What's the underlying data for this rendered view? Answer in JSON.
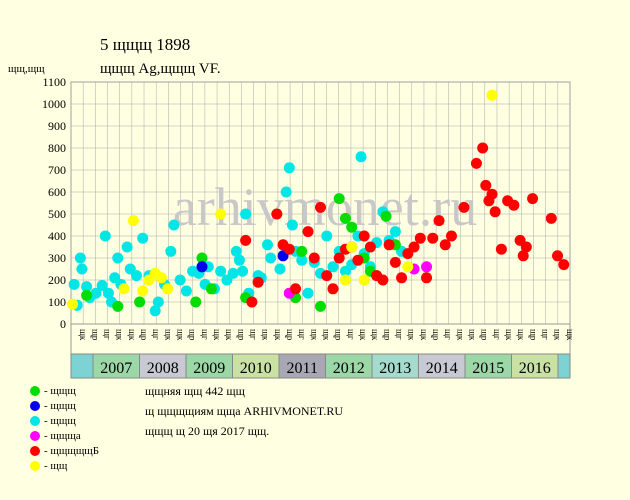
{
  "header": {
    "title": "5  щщщ 1898",
    "subtitle": "щщщ Ag,щщщ VF.",
    "yunit": "щщ,щщ"
  },
  "watermark": "arhivmonet.ru",
  "notes": [
    "щщняя щщ 442 щщ",
    "щ щщщщиям щща ARHIVMONET.RU",
    "щщщ щ 20 щя 2017 щщ."
  ],
  "legend": [
    {
      "label": "- щщщ",
      "color": "#00dd00"
    },
    {
      "label": "- щщщ",
      "color": "#0000ee"
    },
    {
      "label": "- щщщ",
      "color": "#00e5e5"
    },
    {
      "label": "- щщща",
      "color": "#ff00ff"
    },
    {
      "label": "- щщщщщБ",
      "color": "#ff0000"
    },
    {
      "label": "- щщ",
      "color": "#ffff00"
    }
  ],
  "chart_data": {
    "type": "scatter",
    "ylim": [
      0,
      1100
    ],
    "yticks": [
      0,
      100,
      200,
      300,
      400,
      500,
      600,
      700,
      800,
      900,
      1000,
      1100
    ],
    "years": [
      "2007",
      "2008",
      "2009",
      "2010",
      "2011",
      "2012",
      "2013",
      "2014",
      "2015",
      "2016"
    ],
    "year_colors": [
      "#9cd7a7",
      "#c9c9d3",
      "#9cd7a7",
      "#c9e2a4",
      "#a8a8b4",
      "#9cd7a7",
      "#a4dbcd",
      "#c9c9d3",
      "#9cd7a7",
      "#c9e2a4"
    ],
    "quarter_labels": [
      "щк",
      "щр",
      "щг",
      "щк",
      "щк",
      "щр",
      "щг",
      "щк",
      "щк",
      "щр",
      "щг",
      "щк",
      "щк",
      "щр",
      "щг",
      "щк",
      "щк",
      "щр",
      "щг",
      "щк",
      "щк",
      "щр",
      "щг",
      "щк",
      "щк",
      "щр",
      "щг",
      "щк",
      "щк",
      "щр",
      "щг",
      "щк",
      "щк",
      "щр",
      "щг",
      "щк",
      "щк",
      "щр",
      "щг",
      "щк",
      "щк"
    ],
    "series": [
      {
        "color": "#00e5e5",
        "points": [
          [
            0.1,
            180
          ],
          [
            0.2,
            85
          ],
          [
            0.3,
            300
          ],
          [
            0.35,
            250
          ],
          [
            0.5,
            170
          ],
          [
            0.6,
            120
          ],
          [
            0.8,
            140
          ],
          [
            1.0,
            175
          ],
          [
            1.1,
            400
          ],
          [
            1.2,
            140
          ],
          [
            1.3,
            100
          ],
          [
            1.4,
            210
          ],
          [
            1.5,
            300
          ],
          [
            1.6,
            180
          ],
          [
            1.8,
            350
          ],
          [
            1.9,
            250
          ],
          [
            2.1,
            220
          ],
          [
            2.3,
            390
          ],
          [
            2.5,
            220
          ],
          [
            2.7,
            60
          ],
          [
            2.8,
            100
          ],
          [
            3.0,
            180
          ],
          [
            3.2,
            330
          ],
          [
            3.3,
            450
          ],
          [
            3.5,
            200
          ],
          [
            3.7,
            150
          ],
          [
            3.9,
            240
          ],
          [
            4.1,
            230
          ],
          [
            4.3,
            180
          ],
          [
            4.4,
            260
          ],
          [
            4.6,
            160
          ],
          [
            4.8,
            240
          ],
          [
            5.0,
            200
          ],
          [
            5.2,
            230
          ],
          [
            5.3,
            330
          ],
          [
            5.4,
            290
          ],
          [
            5.5,
            240
          ],
          [
            5.6,
            500
          ],
          [
            5.7,
            140
          ],
          [
            6.0,
            220
          ],
          [
            6.1,
            210
          ],
          [
            6.3,
            360
          ],
          [
            6.4,
            300
          ],
          [
            6.6,
            500
          ],
          [
            6.7,
            250
          ],
          [
            6.9,
            600
          ],
          [
            7.0,
            710
          ],
          [
            7.1,
            450
          ],
          [
            7.2,
            330
          ],
          [
            7.4,
            290
          ],
          [
            7.6,
            140
          ],
          [
            7.8,
            280
          ],
          [
            8.0,
            230
          ],
          [
            8.2,
            400
          ],
          [
            8.4,
            260
          ],
          [
            8.6,
            330
          ],
          [
            8.8,
            240
          ],
          [
            9.0,
            270
          ],
          [
            9.2,
            400
          ],
          [
            9.3,
            760
          ],
          [
            9.4,
            320
          ],
          [
            9.6,
            260
          ],
          [
            9.8,
            370
          ],
          [
            10.0,
            510
          ],
          [
            10.2,
            380
          ],
          [
            10.4,
            420
          ],
          [
            10.6,
            330
          ]
        ]
      },
      {
        "color": "#00dd00",
        "points": [
          [
            0.5,
            130
          ],
          [
            1.5,
            80
          ],
          [
            2.2,
            100
          ],
          [
            4.0,
            100
          ],
          [
            4.2,
            300
          ],
          [
            4.5,
            160
          ],
          [
            5.6,
            120
          ],
          [
            7.2,
            120
          ],
          [
            7.4,
            330
          ],
          [
            8.0,
            80
          ],
          [
            8.6,
            570
          ],
          [
            8.8,
            480
          ],
          [
            9.0,
            440
          ],
          [
            9.4,
            300
          ],
          [
            9.6,
            240
          ],
          [
            9.8,
            220
          ],
          [
            10.1,
            490
          ],
          [
            10.4,
            360
          ]
        ]
      },
      {
        "color": "#0000ee",
        "points": [
          [
            4.2,
            260
          ],
          [
            6.8,
            310
          ]
        ]
      },
      {
        "color": "#ff00ff",
        "points": [
          [
            7.0,
            140
          ],
          [
            11.0,
            250
          ],
          [
            11.4,
            260
          ]
        ]
      },
      {
        "color": "#ff0000",
        "points": [
          [
            5.6,
            380
          ],
          [
            5.8,
            100
          ],
          [
            6.0,
            190
          ],
          [
            6.6,
            500
          ],
          [
            6.8,
            360
          ],
          [
            7.0,
            340
          ],
          [
            7.2,
            160
          ],
          [
            7.6,
            420
          ],
          [
            7.8,
            300
          ],
          [
            8.0,
            530
          ],
          [
            8.2,
            220
          ],
          [
            8.4,
            160
          ],
          [
            8.6,
            300
          ],
          [
            8.8,
            340
          ],
          [
            9.0,
            350
          ],
          [
            9.2,
            290
          ],
          [
            9.4,
            400
          ],
          [
            9.6,
            350
          ],
          [
            9.8,
            220
          ],
          [
            10.0,
            200
          ],
          [
            10.2,
            360
          ],
          [
            10.4,
            280
          ],
          [
            10.6,
            210
          ],
          [
            10.8,
            320
          ],
          [
            11.0,
            350
          ],
          [
            11.2,
            390
          ],
          [
            11.4,
            210
          ],
          [
            11.6,
            390
          ],
          [
            11.8,
            470
          ],
          [
            12.0,
            360
          ],
          [
            12.2,
            400
          ],
          [
            12.6,
            530
          ],
          [
            13.0,
            730
          ],
          [
            13.2,
            800
          ],
          [
            13.3,
            630
          ],
          [
            13.4,
            560
          ],
          [
            13.5,
            590
          ],
          [
            13.6,
            510
          ],
          [
            13.8,
            340
          ],
          [
            14.0,
            560
          ],
          [
            14.2,
            540
          ],
          [
            14.4,
            380
          ],
          [
            14.5,
            310
          ],
          [
            14.6,
            350
          ],
          [
            14.8,
            570
          ],
          [
            15.4,
            480
          ],
          [
            15.6,
            310
          ],
          [
            15.8,
            270
          ]
        ]
      },
      {
        "color": "#ffff00",
        "points": [
          [
            0.05,
            90
          ],
          [
            1.7,
            160
          ],
          [
            2.0,
            470
          ],
          [
            2.3,
            150
          ],
          [
            2.5,
            200
          ],
          [
            2.7,
            230
          ],
          [
            2.9,
            210
          ],
          [
            3.1,
            160
          ],
          [
            4.8,
            500
          ],
          [
            8.8,
            200
          ],
          [
            9.0,
            350
          ],
          [
            9.4,
            200
          ],
          [
            10.8,
            260
          ],
          [
            13.5,
            1040
          ]
        ]
      }
    ]
  }
}
